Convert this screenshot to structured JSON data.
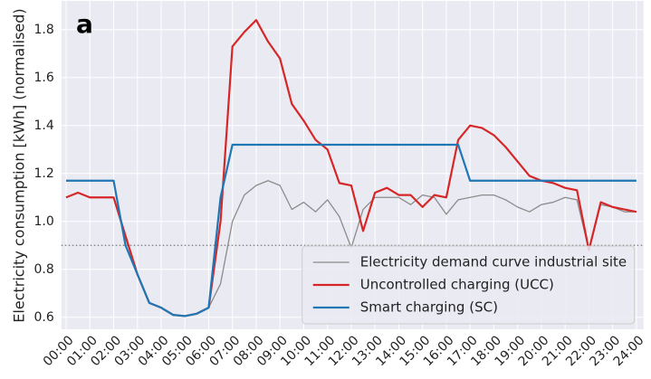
{
  "chart_data": {
    "type": "line",
    "panel_label": "a",
    "y_label": "Electricity consumption [kWh] (normalised)",
    "x": [
      0,
      0.5,
      1,
      1.5,
      2,
      2.5,
      3,
      3.5,
      4,
      4.5,
      5,
      5.5,
      6,
      6.5,
      7,
      7.5,
      8,
      8.5,
      9,
      9.5,
      10,
      10.5,
      11,
      11.5,
      12,
      12.5,
      13,
      13.5,
      14,
      14.5,
      15,
      15.5,
      16,
      16.5,
      17,
      17.5,
      18,
      18.5,
      19,
      19.5,
      20,
      20.5,
      21,
      21.5,
      22,
      22.5,
      23,
      23.5,
      24
    ],
    "series": [
      {
        "name": "Electricity demand curve industrial site",
        "color": "#8c8c8c",
        "width": 1.3,
        "values": [
          1.1,
          1.12,
          1.1,
          1.1,
          1.1,
          0.93,
          0.78,
          0.66,
          0.64,
          0.61,
          0.605,
          0.615,
          0.64,
          0.74,
          1.0,
          1.11,
          1.15,
          1.17,
          1.15,
          1.05,
          1.08,
          1.04,
          1.09,
          1.02,
          0.89,
          1.05,
          1.1,
          1.1,
          1.1,
          1.07,
          1.11,
          1.1,
          1.03,
          1.09,
          1.1,
          1.11,
          1.11,
          1.09,
          1.06,
          1.04,
          1.07,
          1.08,
          1.1,
          1.09,
          0.88,
          1.07,
          1.06,
          1.04,
          1.04
        ]
      },
      {
        "name": "Uncontrolled charging (UCC)",
        "color": "#d62728",
        "width": 2.2,
        "values": [
          1.1,
          1.12,
          1.1,
          1.1,
          1.1,
          0.94,
          0.78,
          0.66,
          0.64,
          0.61,
          0.605,
          0.615,
          0.64,
          1.0,
          1.73,
          1.79,
          1.84,
          1.75,
          1.68,
          1.49,
          1.42,
          1.34,
          1.3,
          1.16,
          1.15,
          0.96,
          1.12,
          1.14,
          1.11,
          1.11,
          1.06,
          1.11,
          1.1,
          1.34,
          1.4,
          1.39,
          1.36,
          1.31,
          1.25,
          1.19,
          1.17,
          1.16,
          1.14,
          1.13,
          0.88,
          1.08,
          1.06,
          1.05,
          1.04
        ]
      },
      {
        "name": "Smart charging (SC)",
        "color": "#1f77b4",
        "width": 2.2,
        "values": [
          1.17,
          1.17,
          1.17,
          1.17,
          1.17,
          0.9,
          0.78,
          0.66,
          0.64,
          0.61,
          0.605,
          0.615,
          0.64,
          1.1,
          1.32,
          1.32,
          1.32,
          1.32,
          1.32,
          1.32,
          1.32,
          1.32,
          1.32,
          1.32,
          1.32,
          1.32,
          1.32,
          1.32,
          1.32,
          1.32,
          1.32,
          1.32,
          1.32,
          1.32,
          1.17,
          1.17,
          1.17,
          1.17,
          1.17,
          1.17,
          1.17,
          1.17,
          1.17,
          1.17,
          1.17,
          1.17,
          1.17,
          1.17,
          1.17
        ]
      }
    ],
    "reference_line": 0.9,
    "xlim": [
      -0.2,
      24.3
    ],
    "ylim": [
      0.55,
      1.92
    ],
    "yticks": [
      {
        "value": 0.6,
        "label": "0.6"
      },
      {
        "value": 0.8,
        "label": "0.8"
      },
      {
        "value": 1.0,
        "label": "1.0"
      },
      {
        "value": 1.2,
        "label": "1.2"
      },
      {
        "value": 1.4,
        "label": "1.4"
      },
      {
        "value": 1.6,
        "label": "1.6"
      },
      {
        "value": 1.8,
        "label": "1.8"
      }
    ],
    "xticks": [
      {
        "value": 0,
        "label": "00:00"
      },
      {
        "value": 1,
        "label": "01:00"
      },
      {
        "value": 2,
        "label": "02:00"
      },
      {
        "value": 3,
        "label": "03:00"
      },
      {
        "value": 4,
        "label": "04:00"
      },
      {
        "value": 5,
        "label": "05:00"
      },
      {
        "value": 6,
        "label": "06:00"
      },
      {
        "value": 7,
        "label": "07:00"
      },
      {
        "value": 8,
        "label": "08:00"
      },
      {
        "value": 9,
        "label": "09:00"
      },
      {
        "value": 10,
        "label": "10:00"
      },
      {
        "value": 11,
        "label": "11:00"
      },
      {
        "value": 12,
        "label": "12:00"
      },
      {
        "value": 13,
        "label": "13:00"
      },
      {
        "value": 14,
        "label": "14:00"
      },
      {
        "value": 15,
        "label": "15:00"
      },
      {
        "value": 16,
        "label": "16:00"
      },
      {
        "value": 17,
        "label": "17:00"
      },
      {
        "value": 18,
        "label": "18:00"
      },
      {
        "value": 19,
        "label": "19:00"
      },
      {
        "value": 20,
        "label": "20:00"
      },
      {
        "value": 21,
        "label": "21:00"
      },
      {
        "value": 22,
        "label": "22:00"
      },
      {
        "value": 23,
        "label": "23:00"
      },
      {
        "value": 24,
        "label": "24:00"
      }
    ],
    "grid": true,
    "legend": "lower right"
  }
}
